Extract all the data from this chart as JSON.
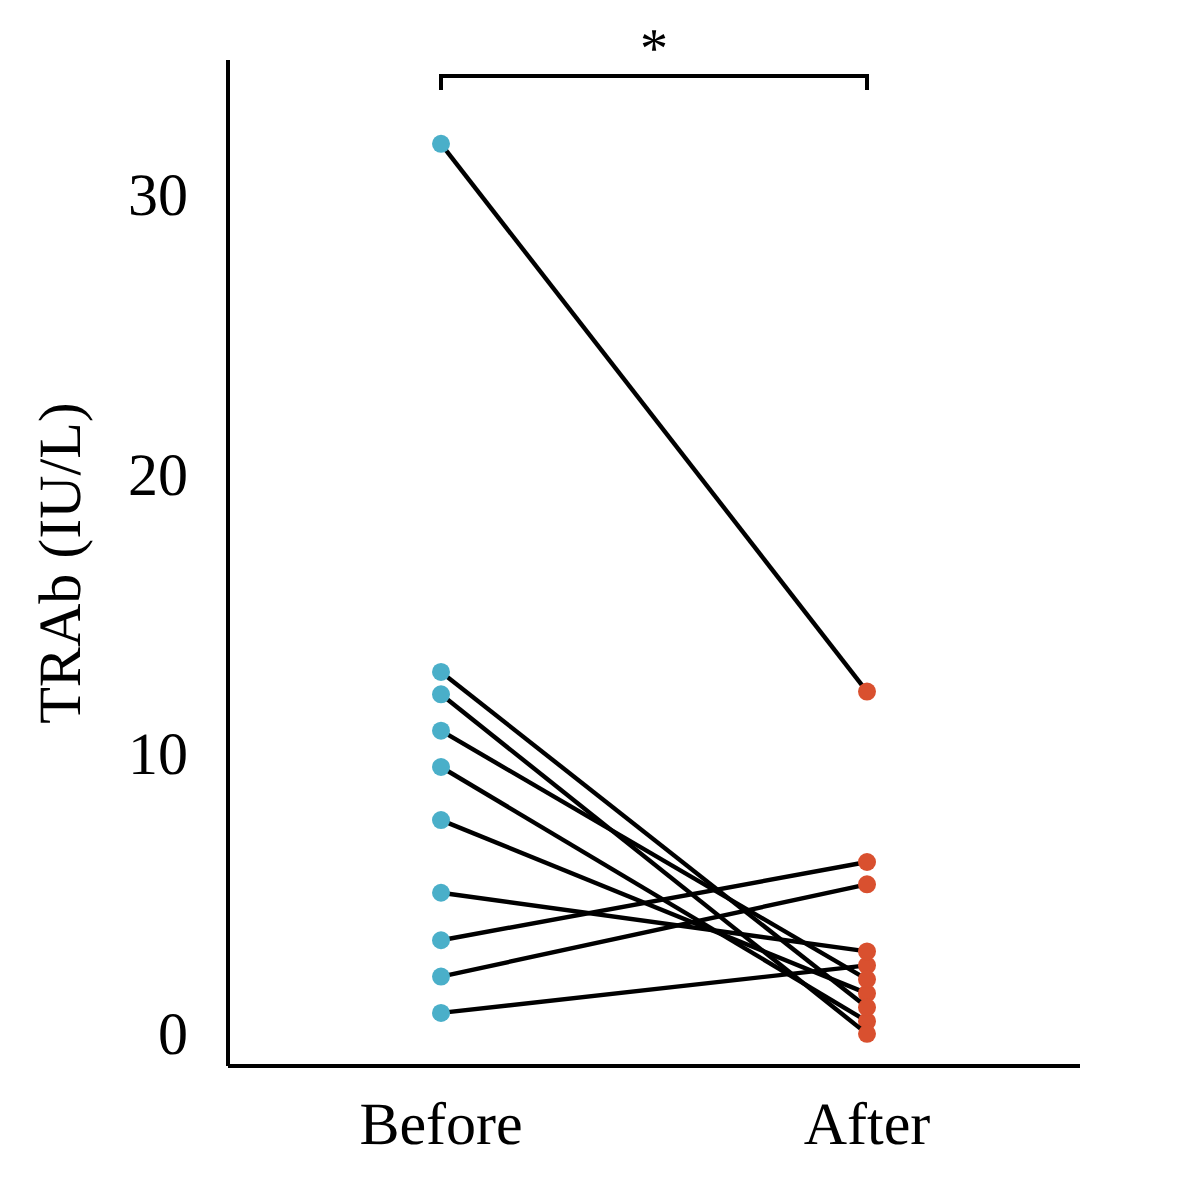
{
  "chart_data": {
    "type": "line",
    "ylabel": "TRAb (IU/L)",
    "categories": [
      "Before",
      "After"
    ],
    "series": [
      {
        "color": "#000000",
        "colors": [
          "#4aafc9",
          "#d9502f"
        ],
        "values": [
          32,
          12.4
        ]
      },
      {
        "color": "#000000",
        "colors": [
          "#4aafc9",
          "#d9502f"
        ],
        "values": [
          13.1,
          1.1
        ]
      },
      {
        "color": "#000000",
        "colors": [
          "#4aafc9",
          "#d9502f"
        ],
        "values": [
          12.3,
          0.15
        ]
      },
      {
        "color": "#000000",
        "colors": [
          "#4aafc9",
          "#d9502f"
        ],
        "values": [
          11.0,
          2.1
        ]
      },
      {
        "color": "#000000",
        "colors": [
          "#4aafc9",
          "#d9502f"
        ],
        "values": [
          9.7,
          0.6
        ]
      },
      {
        "color": "#000000",
        "colors": [
          "#4aafc9",
          "#d9502f"
        ],
        "values": [
          7.8,
          1.6
        ]
      },
      {
        "color": "#000000",
        "colors": [
          "#4aafc9",
          "#d9502f"
        ],
        "values": [
          5.2,
          3.1
        ]
      },
      {
        "color": "#000000",
        "colors": [
          "#4aafc9",
          "#d9502f"
        ],
        "values": [
          3.5,
          6.3
        ]
      },
      {
        "color": "#000000",
        "colors": [
          "#4aafc9",
          "#d9502f"
        ],
        "values": [
          2.2,
          5.5
        ]
      },
      {
        "color": "#000000",
        "colors": [
          "#4aafc9",
          "#d9502f"
        ],
        "values": [
          0.9,
          2.6
        ]
      }
    ],
    "ylim": [
      -1,
      35
    ],
    "yticks": [
      0,
      10,
      20,
      30
    ],
    "grid": false,
    "legend": false,
    "marker": "circle",
    "line_style": "solid",
    "annotations": [
      "*"
    ]
  }
}
